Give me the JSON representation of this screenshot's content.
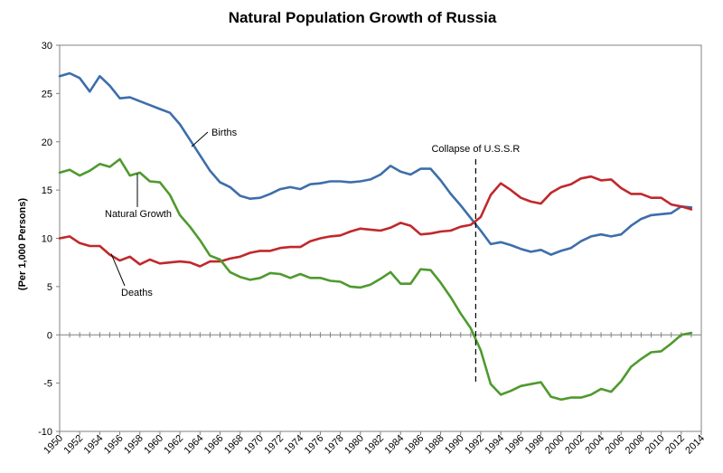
{
  "chart_data": {
    "type": "line",
    "title": "Natural Population Growth of Russia",
    "xlabel": "",
    "ylabel": "(Per 1,000 Persons)",
    "xlim": [
      1950,
      2014
    ],
    "ylim": [
      -10,
      30
    ],
    "y_ticks": [
      -10,
      -5,
      0,
      5,
      10,
      15,
      20,
      25,
      30
    ],
    "x_ticks": [
      1950,
      1952,
      1954,
      1956,
      1958,
      1960,
      1962,
      1964,
      1966,
      1968,
      1970,
      1972,
      1974,
      1976,
      1978,
      1980,
      1982,
      1984,
      1986,
      1988,
      1990,
      1992,
      1994,
      1996,
      1998,
      2000,
      2002,
      2004,
      2006,
      2008,
      2010,
      2012,
      2014
    ],
    "y_tick_labels": [
      "-10",
      "-5",
      "0",
      "5",
      "10",
      "15",
      "20",
      "25",
      "30"
    ],
    "x_tick_labels": [
      "1950",
      "1952",
      "1954",
      "1956",
      "1958",
      "1960",
      "1962",
      "1964",
      "1966",
      "1968",
      "1970",
      "1972",
      "1974",
      "1976",
      "1978",
      "1980",
      "1982",
      "1984",
      "1986",
      "1988",
      "1990",
      "1992",
      "1994",
      "1996",
      "1998",
      "2000",
      "2002",
      "2004",
      "2006",
      "2008",
      "2010",
      "2012",
      "2014"
    ],
    "grid": false,
    "x": [
      1950,
      1951,
      1952,
      1953,
      1954,
      1955,
      1956,
      1957,
      1958,
      1959,
      1960,
      1961,
      1962,
      1963,
      1964,
      1965,
      1966,
      1967,
      1968,
      1969,
      1970,
      1971,
      1972,
      1973,
      1974,
      1975,
      1976,
      1977,
      1978,
      1979,
      1980,
      1981,
      1982,
      1983,
      1984,
      1985,
      1986,
      1987,
      1988,
      1989,
      1990,
      1991,
      1992,
      1993,
      1994,
      1995,
      1996,
      1997,
      1998,
      1999,
      2000,
      2001,
      2002,
      2003,
      2004,
      2005,
      2006,
      2007,
      2008,
      2009,
      2010,
      2011,
      2012,
      2013
    ],
    "series": [
      {
        "name": "Births",
        "color": "#3d6eab",
        "values": [
          26.8,
          27.1,
          26.6,
          25.2,
          26.8,
          25.8,
          24.5,
          24.6,
          24.2,
          23.8,
          23.4,
          23.0,
          21.8,
          20.2,
          18.6,
          17.0,
          15.8,
          15.3,
          14.4,
          14.1,
          14.2,
          14.6,
          15.1,
          15.3,
          15.1,
          15.6,
          15.7,
          15.9,
          15.9,
          15.8,
          15.9,
          16.1,
          16.6,
          17.5,
          16.9,
          16.6,
          17.2,
          17.2,
          16.0,
          14.6,
          13.4,
          12.1,
          10.8,
          9.4,
          9.6,
          9.3,
          8.9,
          8.6,
          8.8,
          8.3,
          8.7,
          9.0,
          9.7,
          10.2,
          10.4,
          10.2,
          10.4,
          11.3,
          12.0,
          12.4,
          12.5,
          12.6,
          13.3,
          13.2
        ]
      },
      {
        "name": "Deaths",
        "color": "#c0282b",
        "values": [
          10.0,
          10.2,
          9.5,
          9.2,
          9.2,
          8.3,
          7.7,
          8.1,
          7.3,
          7.8,
          7.4,
          7.5,
          7.6,
          7.5,
          7.1,
          7.6,
          7.6,
          7.9,
          8.1,
          8.5,
          8.7,
          8.7,
          9.0,
          9.1,
          9.1,
          9.7,
          10.0,
          10.2,
          10.3,
          10.7,
          11.0,
          10.9,
          10.8,
          11.1,
          11.6,
          11.3,
          10.4,
          10.5,
          10.7,
          10.8,
          11.2,
          11.4,
          12.2,
          14.5,
          15.7,
          15.0,
          14.2,
          13.8,
          13.6,
          14.7,
          15.3,
          15.6,
          16.2,
          16.4,
          16.0,
          16.1,
          15.2,
          14.6,
          14.6,
          14.2,
          14.2,
          13.5,
          13.3,
          13.0
        ]
      },
      {
        "name": "Natural Growth",
        "color": "#4e9a2e",
        "values": [
          16.8,
          17.1,
          16.5,
          17.0,
          17.7,
          17.4,
          18.2,
          16.5,
          16.8,
          15.9,
          15.8,
          14.5,
          12.4,
          11.2,
          9.8,
          8.2,
          7.8,
          6.5,
          6.0,
          5.7,
          5.9,
          6.4,
          6.3,
          5.9,
          6.3,
          5.9,
          5.9,
          5.6,
          5.5,
          5.0,
          4.9,
          5.2,
          5.8,
          6.5,
          5.3,
          5.3,
          6.8,
          6.7,
          5.4,
          3.9,
          2.2,
          0.7,
          -1.6,
          -5.1,
          -6.2,
          -5.8,
          -5.3,
          -5.1,
          -4.9,
          -6.4,
          -6.7,
          -6.5,
          -6.5,
          -6.2,
          -5.6,
          -5.9,
          -4.8,
          -3.3,
          -2.5,
          -1.8,
          -1.7,
          -0.9,
          0.0,
          0.2
        ]
      }
    ],
    "annotations": [
      {
        "text": "Births",
        "series": "Births"
      },
      {
        "text": "Natural Growth",
        "series": "Natural Growth"
      },
      {
        "text": "Deaths",
        "series": "Deaths"
      },
      {
        "text": "Collapse of U.S.S.R",
        "x": 1991.5,
        "kind": "vertical-dashed-line"
      }
    ]
  }
}
